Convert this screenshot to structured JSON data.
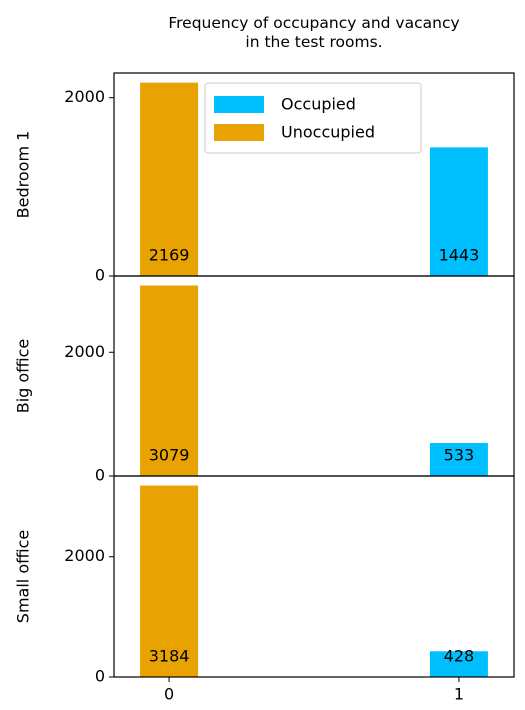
{
  "chart_data": [
    {
      "type": "bar",
      "title": "Frequency of occupancy and vacancy\nin the test rooms.",
      "ylabel": "Bedroom 1",
      "x": [
        0,
        1
      ],
      "xlim": [
        -0.19,
        1.19
      ],
      "ylim": [
        0,
        2277
      ],
      "yticks": [
        0,
        2000
      ],
      "legend": "upper center",
      "series": [
        {
          "name": "Occupied",
          "color": "#00bfff",
          "values": [
            null,
            1443
          ]
        },
        {
          "name": "Unoccupied",
          "color": "#e8a202",
          "values": [
            2169,
            null
          ]
        }
      ]
    },
    {
      "type": "bar",
      "ylabel": "Big office",
      "x": [
        0,
        1
      ],
      "xlim": [
        -0.19,
        1.19
      ],
      "ylim": [
        0,
        3233
      ],
      "yticks": [
        0,
        2000
      ],
      "series": [
        {
          "color": "#00bfff",
          "values": [
            null,
            533
          ]
        },
        {
          "color": "#e8a202",
          "values": [
            3079,
            null
          ]
        }
      ]
    },
    {
      "type": "bar",
      "ylabel": "Small office",
      "x": [
        0,
        1
      ],
      "xlim": [
        -0.19,
        1.19
      ],
      "ylim": [
        0,
        3343
      ],
      "yticks": [
        0,
        2000
      ],
      "xticks": [
        0,
        1
      ],
      "series": [
        {
          "color": "#00bfff",
          "values": [
            null,
            428
          ]
        },
        {
          "color": "#e8a202",
          "values": [
            3184,
            null
          ]
        }
      ]
    }
  ]
}
